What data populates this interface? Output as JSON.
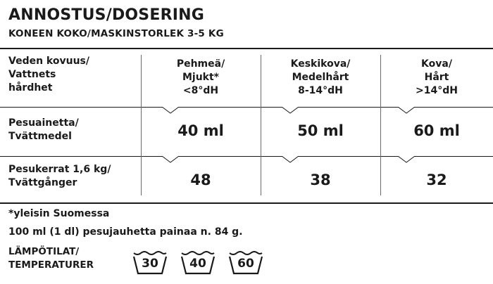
{
  "title": "ANNOSTUS/DOSERING",
  "subtitle": "KONEEN KOKO/MASKINSTORLEK 3-5 KG",
  "table": {
    "header": {
      "label": [
        "Veden kovuus/",
        "Vattnets",
        "hårdhet"
      ],
      "columns": [
        [
          "Pehmeä/",
          "Mjukt*",
          "<8°dH"
        ],
        [
          "Keskikova/",
          "Medelhårt",
          "8-14°dH"
        ],
        [
          "Kova/",
          "Hårt",
          ">14°dH"
        ]
      ]
    },
    "rows": [
      {
        "label": [
          "Pesuainetta/",
          "Tvättmedel"
        ],
        "values": [
          "40 ml",
          "50 ml",
          "60 ml"
        ]
      },
      {
        "label": [
          "Pesukerrat 1,6 kg/",
          "Tvättgånger"
        ],
        "values": [
          "48",
          "38",
          "32"
        ]
      }
    ]
  },
  "notes": [
    "*yleisin Suomessa",
    "100 ml (1 dl) pesujauhetta painaa n. 84 g."
  ],
  "temperatures": {
    "label": [
      "LÄMPÖTILAT/",
      "TEMPERATURER"
    ],
    "icons": [
      {
        "icon": "wash-tub-icon",
        "value": "30"
      },
      {
        "icon": "wash-tub-icon",
        "value": "40"
      },
      {
        "icon": "wash-tub-icon",
        "value": "60"
      }
    ]
  }
}
